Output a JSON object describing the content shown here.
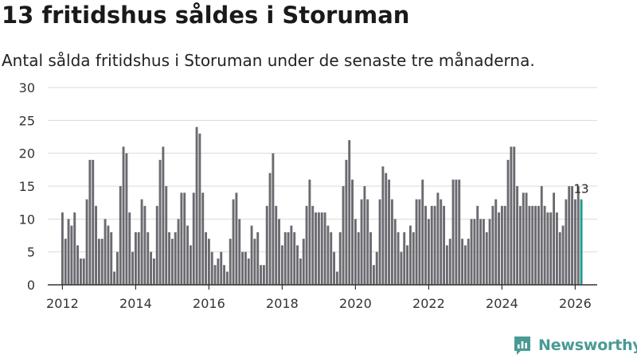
{
  "title": "13 fritidshus såldes i Storuman",
  "subtitle": "Antal sålda fritidshus i Storuman under de senaste tre månaderna.",
  "brand": {
    "name": "Newsworthy",
    "icon": "newsworthy-logo-icon"
  },
  "colors": {
    "bar": "#6b6a70",
    "highlight": "#1a9c8f",
    "grid": "#d9d9d9",
    "axis": "#333333",
    "brand": "#4a9a94"
  },
  "chart_data": {
    "type": "bar",
    "title": "13 fritidshus såldes i Storuman",
    "xlabel": "",
    "ylabel": "",
    "ylim": [
      0,
      30
    ],
    "yticks": [
      0,
      5,
      10,
      15,
      20,
      25,
      30
    ],
    "xticks": [
      {
        "label": "2012",
        "x": 2012.0
      },
      {
        "label": "2014",
        "x": 2014.0
      },
      {
        "label": "2016",
        "x": 2016.0
      },
      {
        "label": "2018",
        "x": 2018.0
      },
      {
        "label": "2020",
        "x": 2020.0
      },
      {
        "label": "2022",
        "x": 2022.0
      },
      {
        "label": "2024",
        "x": 2024.0
      },
      {
        "label": "2026",
        "x": 2026.0
      }
    ],
    "start": {
      "year": 2012,
      "month": 1
    },
    "frequency": "monthly",
    "values": [
      11,
      7,
      10,
      9,
      11,
      6,
      4,
      4,
      13,
      19,
      19,
      12,
      7,
      7,
      10,
      9,
      8,
      2,
      5,
      15,
      21,
      20,
      11,
      5,
      8,
      8,
      13,
      12,
      8,
      5,
      4,
      12,
      19,
      21,
      15,
      8,
      7,
      8,
      10,
      14,
      14,
      9,
      6,
      14,
      24,
      23,
      14,
      8,
      7,
      5,
      3,
      4,
      5,
      3,
      2,
      7,
      13,
      14,
      10,
      5,
      5,
      4,
      9,
      7,
      8,
      3,
      3,
      12,
      17,
      20,
      12,
      10,
      6,
      8,
      8,
      9,
      8,
      6,
      4,
      7,
      12,
      16,
      12,
      11,
      11,
      11,
      11,
      9,
      8,
      5,
      2,
      8,
      15,
      19,
      22,
      16,
      10,
      8,
      13,
      15,
      13,
      8,
      3,
      5,
      13,
      18,
      17,
      16,
      13,
      10,
      8,
      5,
      8,
      6,
      9,
      8,
      13,
      13,
      16,
      12,
      10,
      12,
      12,
      14,
      13,
      12,
      6,
      7,
      16,
      16,
      16,
      7,
      6,
      7,
      10,
      10,
      12,
      10,
      10,
      8,
      10,
      12,
      13,
      11,
      12,
      12,
      19,
      21,
      21,
      15,
      12,
      14,
      14,
      12,
      12,
      12,
      12,
      15,
      12,
      11,
      11,
      14,
      11,
      8,
      9,
      13,
      15,
      15,
      13,
      15,
      13
    ],
    "highlight_last": true,
    "annotation": {
      "label": "13",
      "value": 13
    }
  }
}
